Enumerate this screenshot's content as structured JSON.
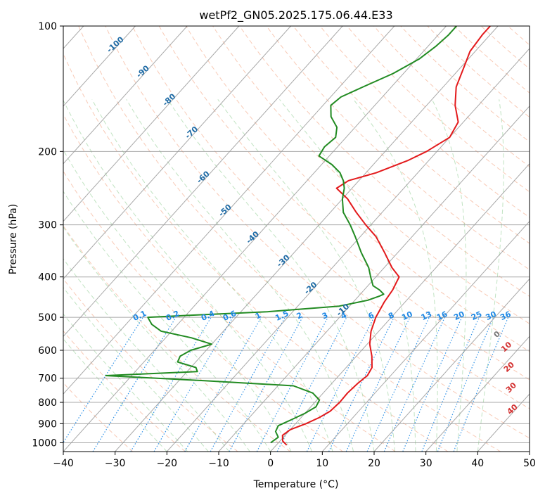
{
  "chart_data": {
    "type": "line",
    "subtype": "skew-t log-p",
    "title": "wetPf2_GN05.2025.175.06.44.E33",
    "xlabel": "Temperature (°C)",
    "ylabel": "Pressure (hPa)",
    "xlim": [
      -40,
      50
    ],
    "ylim": [
      1050,
      100
    ],
    "y_scale": "log",
    "grid": true,
    "x_ticks": [
      -40,
      -30,
      -20,
      -10,
      0,
      10,
      20,
      30,
      40,
      50
    ],
    "y_ticks": [
      100,
      200,
      300,
      400,
      500,
      600,
      700,
      800,
      900,
      1000
    ],
    "colors": {
      "temperature": "#e31a1c",
      "dewpoint": "#228b22",
      "isotherm": "#9a9a9a",
      "dry_adiabat": "#f08a5d",
      "moist_adiabat": "#4caf50",
      "mixing_ratio": "#1e88e5",
      "isotherm_label": "#1f6ba5",
      "wetbulb_label": "#d32f2f"
    },
    "isotherm_labels": [
      "-100",
      "-90",
      "-80",
      "-70",
      "-60",
      "-50",
      "-40",
      "-30",
      "-20",
      "-10"
    ],
    "mixing_ratio_labels": [
      "0.1",
      "0.2",
      "0.4",
      "0.6",
      "1",
      "1.5",
      "2",
      "3",
      "4",
      "6",
      "8",
      "10",
      "13",
      "16",
      "20",
      "25",
      "30",
      "36"
    ],
    "wetbulb_labels": [
      "0",
      "10",
      "20",
      "30",
      "40"
    ],
    "series": [
      {
        "name": "Temperature",
        "points": [
          [
            1013,
            2.0
          ],
          [
            990,
            0.5
          ],
          [
            960,
            -0.5
          ],
          [
            930,
            0.0
          ],
          [
            900,
            2.0
          ],
          [
            870,
            3.5
          ],
          [
            840,
            4.5
          ],
          [
            800,
            4.8
          ],
          [
            760,
            4.7
          ],
          [
            720,
            5.0
          ],
          [
            690,
            5.5
          ],
          [
            660,
            5.0
          ],
          [
            620,
            3.0
          ],
          [
            580,
            0.5
          ],
          [
            540,
            -1.5
          ],
          [
            500,
            -3.0
          ],
          [
            460,
            -4.0
          ],
          [
            430,
            -4.5
          ],
          [
            400,
            -5.5
          ],
          [
            380,
            -8.5
          ],
          [
            350,
            -12.5
          ],
          [
            320,
            -17.0
          ],
          [
            300,
            -21.0
          ],
          [
            280,
            -25.0
          ],
          [
            260,
            -29.0
          ],
          [
            245,
            -33.0
          ],
          [
            235,
            -32.0
          ],
          [
            225,
            -28.0
          ],
          [
            210,
            -24.0
          ],
          [
            200,
            -22.0
          ],
          [
            185,
            -20.0
          ],
          [
            170,
            -21.0
          ],
          [
            155,
            -24.5
          ],
          [
            140,
            -27.5
          ],
          [
            125,
            -29.5
          ],
          [
            115,
            -31.0
          ],
          [
            105,
            -31.5
          ],
          [
            100,
            -31.5
          ]
        ]
      },
      {
        "name": "Dewpoint",
        "points": [
          [
            1000,
            -1.5
          ],
          [
            970,
            -1.0
          ],
          [
            940,
            -2.5
          ],
          [
            910,
            -3.0
          ],
          [
            880,
            -1.5
          ],
          [
            850,
            0.0
          ],
          [
            820,
            1.0
          ],
          [
            790,
            0.5
          ],
          [
            760,
            -2.0
          ],
          [
            730,
            -7.0
          ],
          [
            710,
            -25.0
          ],
          [
            690,
            -45.0
          ],
          [
            675,
            -28.0
          ],
          [
            660,
            -29.0
          ],
          [
            640,
            -33.5
          ],
          [
            620,
            -34.0
          ],
          [
            600,
            -33.0
          ],
          [
            580,
            -30.0
          ],
          [
            560,
            -35.0
          ],
          [
            540,
            -42.0
          ],
          [
            520,
            -45.0
          ],
          [
            500,
            -47.0
          ],
          [
            495,
            -40.0
          ],
          [
            485,
            -25.0
          ],
          [
            470,
            -12.0
          ],
          [
            455,
            -7.5
          ],
          [
            445,
            -6.0
          ],
          [
            440,
            -5.5
          ],
          [
            430,
            -7.0
          ],
          [
            420,
            -9.0
          ],
          [
            400,
            -11.0
          ],
          [
            380,
            -13.0
          ],
          [
            350,
            -17.0
          ],
          [
            320,
            -21.0
          ],
          [
            300,
            -24.0
          ],
          [
            280,
            -27.5
          ],
          [
            260,
            -30.0
          ],
          [
            245,
            -31.5
          ],
          [
            235,
            -33.0
          ],
          [
            225,
            -35.0
          ],
          [
            215,
            -38.0
          ],
          [
            205,
            -42.0
          ],
          [
            195,
            -42.5
          ],
          [
            185,
            -42.0
          ],
          [
            175,
            -43.5
          ],
          [
            165,
            -46.5
          ],
          [
            155,
            -48.5
          ],
          [
            148,
            -48.0
          ],
          [
            140,
            -45.5
          ],
          [
            130,
            -42.0
          ],
          [
            120,
            -39.5
          ],
          [
            112,
            -38.5
          ],
          [
            105,
            -38.0
          ],
          [
            100,
            -38.0
          ]
        ]
      }
    ]
  }
}
